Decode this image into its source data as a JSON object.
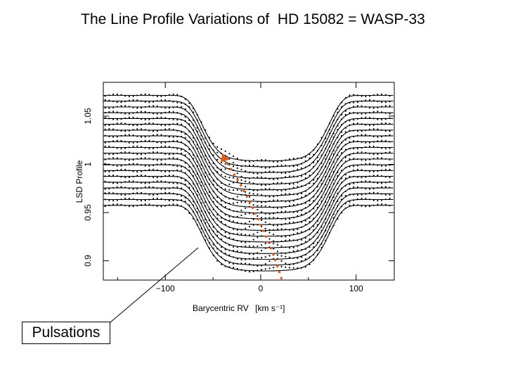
{
  "slide": {
    "title": "The Line Profile Variations of  HD 15082 = WASP-33"
  },
  "annotation": {
    "label": "Pulsations"
  },
  "chart_data": {
    "type": "line",
    "xlabel": "Barycentric RV",
    "xlabel_unit": "[km s⁻¹]",
    "ylabel": "LSD Profile",
    "xlim": [
      -165,
      140
    ],
    "ylim": [
      0.88,
      1.085
    ],
    "x_ticks": [
      -100,
      0,
      100
    ],
    "y_ticks": [
      0.9,
      0.95,
      1,
      1.05
    ],
    "grid": false,
    "n_profiles": 20,
    "offsets": [
      1.0715,
      1.0655,
      1.0595,
      1.0535,
      1.0475,
      1.0415,
      1.0355,
      1.0295,
      1.0235,
      1.0175,
      1.0115,
      1.0055,
      0.9995,
      0.9935,
      0.9875,
      0.9815,
      0.9755,
      0.9695,
      0.9635,
      0.9575
    ],
    "line_depth": 0.068,
    "line_center": 5,
    "vsini": 90,
    "pulsation_track": {
      "color": "#e05a1a",
      "start": {
        "x": -40,
        "y": 1.0115
      },
      "end": {
        "x": 22,
        "y": 0.881
      }
    },
    "series": []
  }
}
